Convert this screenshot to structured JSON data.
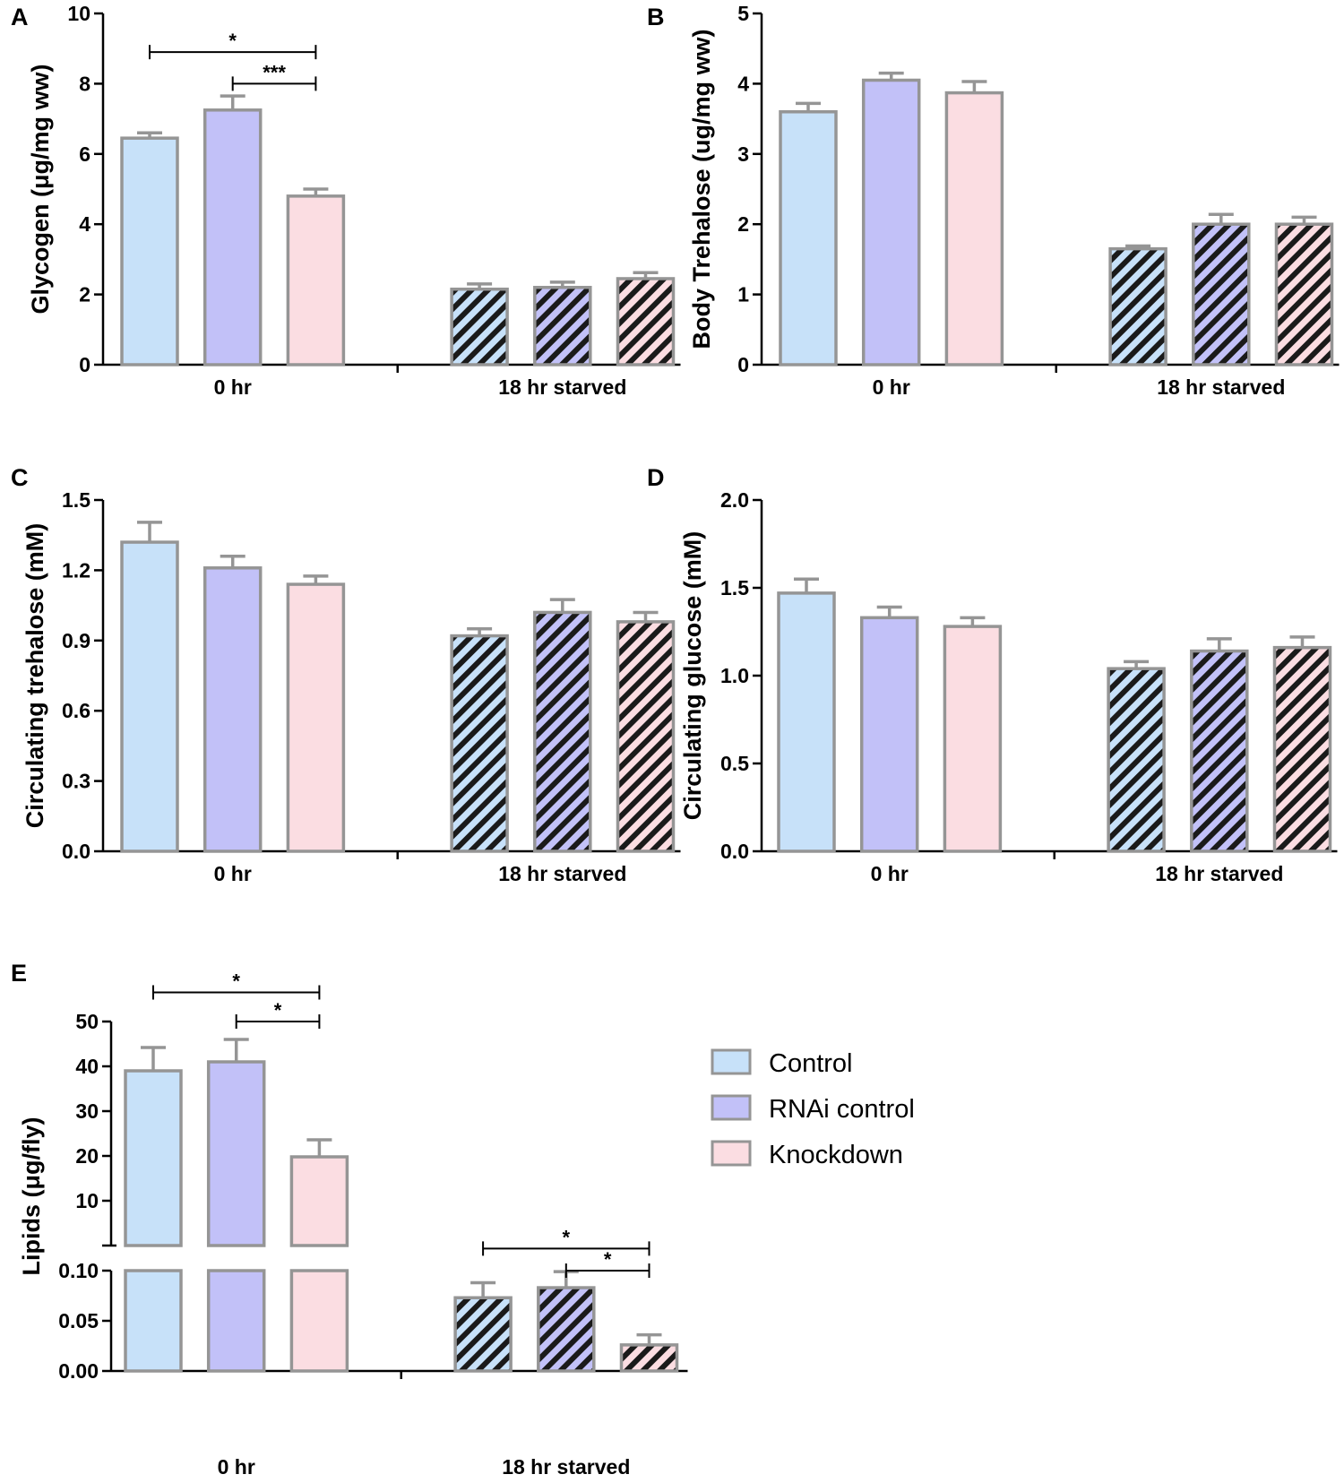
{
  "colors": {
    "control": "#c7e1f9",
    "rnai_control": "#c2c1f8",
    "knockdown": "#fbdde2",
    "bar_stroke": "#959595",
    "hatch_line": "#1a1a1a",
    "axis": "#000000"
  },
  "legend": {
    "items": [
      {
        "label": "Control",
        "color_key": "control"
      },
      {
        "label": "RNAi control",
        "color_key": "rnai_control"
      },
      {
        "label": "Knockdown",
        "color_key": "knockdown"
      }
    ]
  },
  "chart_data": [
    {
      "panel": "A",
      "type": "bar",
      "ylabel": "Glycogen (μg/mg ww)",
      "ylim": [
        0,
        10
      ],
      "yticks": [
        0,
        2,
        4,
        6,
        8,
        10
      ],
      "ytick_labels": [
        "0",
        "2",
        "4",
        "6",
        "8",
        "10"
      ],
      "groups": [
        "0 hr",
        "18 hr starved"
      ],
      "series": [
        {
          "name": "Control",
          "values": [
            6.45,
            2.15
          ],
          "errors": [
            0.15,
            0.15
          ]
        },
        {
          "name": "RNAi control",
          "values": [
            7.25,
            2.2
          ],
          "errors": [
            0.4,
            0.15
          ]
        },
        {
          "name": "Knockdown",
          "values": [
            4.8,
            2.45
          ],
          "errors": [
            0.2,
            0.17
          ]
        }
      ],
      "significance": [
        {
          "from_bar": 0,
          "to_bar": 2,
          "label": "*",
          "y": 8.9
        },
        {
          "from_bar": 1,
          "to_bar": 2,
          "label": "***",
          "y": 8.0
        }
      ]
    },
    {
      "panel": "B",
      "type": "bar",
      "ylabel": "Body Trehalose (ug/mg ww)",
      "ylim": [
        0,
        5
      ],
      "yticks": [
        0,
        1,
        2,
        3,
        4,
        5
      ],
      "ytick_labels": [
        "0",
        "1",
        "2",
        "3",
        "4",
        "5"
      ],
      "groups": [
        "0 hr",
        "18 hr starved"
      ],
      "series": [
        {
          "name": "Control",
          "values": [
            3.6,
            1.65
          ],
          "errors": [
            0.12,
            0.04
          ]
        },
        {
          "name": "RNAi control",
          "values": [
            4.05,
            2.0
          ],
          "errors": [
            0.1,
            0.14
          ]
        },
        {
          "name": "Knockdown",
          "values": [
            3.87,
            2.0
          ],
          "errors": [
            0.16,
            0.1
          ]
        }
      ],
      "significance": []
    },
    {
      "panel": "C",
      "type": "bar",
      "ylabel": "Circulating trehalose (mM)",
      "ylim": [
        0,
        1.5
      ],
      "yticks": [
        0,
        0.3,
        0.6,
        0.9,
        1.2,
        1.5
      ],
      "ytick_labels": [
        "0.0",
        "0.3",
        "0.6",
        "0.9",
        "1.2",
        "1.5"
      ],
      "groups": [
        "0 hr",
        "18 hr starved"
      ],
      "series": [
        {
          "name": "Control",
          "values": [
            1.32,
            0.92
          ],
          "errors": [
            0.085,
            0.03
          ]
        },
        {
          "name": "RNAi control",
          "values": [
            1.21,
            1.02
          ],
          "errors": [
            0.05,
            0.055
          ]
        },
        {
          "name": "Knockdown",
          "values": [
            1.14,
            0.98
          ],
          "errors": [
            0.035,
            0.04
          ]
        }
      ],
      "significance": []
    },
    {
      "panel": "D",
      "type": "bar",
      "ylabel": "Circulating glucose (mM)",
      "ylim": [
        0,
        2.0
      ],
      "yticks": [
        0,
        0.5,
        1.0,
        1.5,
        2.0
      ],
      "ytick_labels": [
        "0.0",
        "0.5",
        "1.0",
        "1.5",
        "2.0"
      ],
      "groups": [
        "0 hr",
        "18 hr starved"
      ],
      "series": [
        {
          "name": "Control",
          "values": [
            1.47,
            1.04
          ],
          "errors": [
            0.08,
            0.04
          ]
        },
        {
          "name": "RNAi control",
          "values": [
            1.33,
            1.14
          ],
          "errors": [
            0.06,
            0.07
          ]
        },
        {
          "name": "Knockdown",
          "values": [
            1.28,
            1.16
          ],
          "errors": [
            0.05,
            0.06
          ]
        }
      ],
      "significance": []
    },
    {
      "panel": "E",
      "type": "bar",
      "ylabel": "Lipids (μg/fly)",
      "broken_axis": true,
      "upper_ylim": [
        0,
        50
      ],
      "upper_yticks": [
        10,
        20,
        30,
        40,
        50
      ],
      "upper_ytick_labels": [
        "10",
        "20",
        "30",
        "40",
        "50"
      ],
      "lower_ylim": [
        0,
        0.1
      ],
      "lower_yticks": [
        0,
        0.05,
        0.1
      ],
      "lower_ytick_labels": [
        "0.00",
        "0.05",
        "0.10"
      ],
      "groups": [
        "0 hr",
        "18 hr starved"
      ],
      "series": [
        {
          "name": "Control",
          "values": [
            39,
            0.073
          ],
          "errors": [
            5.2,
            0.015
          ]
        },
        {
          "name": "RNAi control",
          "values": [
            41,
            0.083
          ],
          "errors": [
            5,
            0.016
          ]
        },
        {
          "name": "Knockdown",
          "values": [
            19.8,
            0.026
          ],
          "errors": [
            3.8,
            0.01
          ]
        }
      ],
      "significance": [
        {
          "from_bar": 0,
          "to_bar": 2,
          "label": "*",
          "segment": "upper",
          "y": 56.5
        },
        {
          "from_bar": 1,
          "to_bar": 2,
          "label": "*",
          "segment": "upper",
          "y": 50
        },
        {
          "from_bar": 3,
          "to_bar": 5,
          "label": "*",
          "segment": "lower",
          "y": 0.122
        },
        {
          "from_bar": 4,
          "to_bar": 5,
          "label": "*",
          "segment": "lower",
          "y": 0.1
        }
      ]
    }
  ]
}
